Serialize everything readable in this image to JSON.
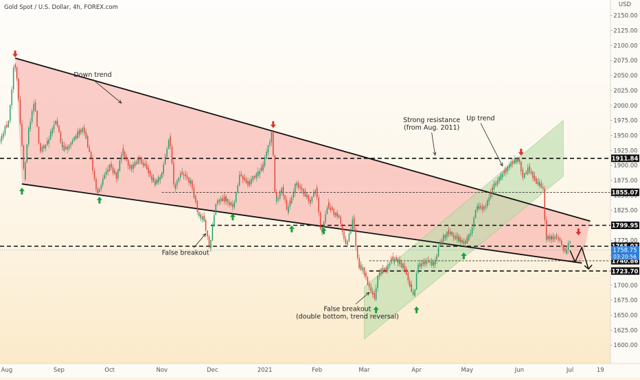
{
  "header": {
    "title": "Gold Spot / U.S. Dollar, 4h, FOREX.com"
  },
  "chart_data": {
    "type": "candlestick",
    "currency_label": "USD",
    "y_range": [
      1575,
      2160
    ],
    "y_ticks": [
      1600,
      1625,
      1650,
      1675,
      1700,
      1725,
      1750,
      1775,
      1800,
      1825,
      1850,
      1875,
      1900,
      1925,
      1950,
      1975,
      2000,
      2025,
      2050,
      2075,
      2100,
      2125,
      2150
    ],
    "y_tick_labels": [
      "1600.00",
      "1625.00",
      "1650.00",
      "1675.00",
      "1700.00",
      "1725.00",
      "1750.00",
      "1775.00",
      "1800.00",
      "1825.00",
      "1850.00",
      "1875.00",
      "1900.00",
      "1925.00",
      "1950.00",
      "1975.00",
      "2000.00",
      "2025.00",
      "2050.00",
      "2075.00",
      "2100.00",
      "2125.00",
      "2150.00"
    ],
    "x_range": [
      "2020-07-28",
      "2021-07-25"
    ],
    "x_ticks": [
      {
        "date": "2020-08-01",
        "label": "Aug"
      },
      {
        "date": "2020-09-01",
        "label": "Sep"
      },
      {
        "date": "2020-10-01",
        "label": "Oct"
      },
      {
        "date": "2020-11-01",
        "label": "Nov"
      },
      {
        "date": "2020-12-01",
        "label": "Dec"
      },
      {
        "date": "2021-01-01",
        "label": "2021"
      },
      {
        "date": "2021-02-01",
        "label": "Feb"
      },
      {
        "date": "2021-03-01",
        "label": "Mar"
      },
      {
        "date": "2021-04-01",
        "label": "Apr"
      },
      {
        "date": "2021-05-01",
        "label": "May"
      },
      {
        "date": "2021-06-01",
        "label": "Jun"
      },
      {
        "date": "2021-07-01",
        "label": "Jul"
      },
      {
        "date": "2021-07-19",
        "label": "19"
      }
    ],
    "price_path": [
      [
        "2020-07-28",
        1940
      ],
      [
        "2020-08-03",
        1975
      ],
      [
        "2020-08-06",
        2072
      ],
      [
        "2020-08-08",
        2040
      ],
      [
        "2020-08-12",
        1880
      ],
      [
        "2020-08-14",
        1950
      ],
      [
        "2020-08-18",
        2005
      ],
      [
        "2020-08-21",
        1925
      ],
      [
        "2020-08-25",
        1935
      ],
      [
        "2020-08-31",
        1975
      ],
      [
        "2020-09-04",
        1925
      ],
      [
        "2020-09-08",
        1935
      ],
      [
        "2020-09-16",
        1965
      ],
      [
        "2020-09-21",
        1905
      ],
      [
        "2020-09-24",
        1852
      ],
      [
        "2020-09-28",
        1880
      ],
      [
        "2020-10-02",
        1900
      ],
      [
        "2020-10-06",
        1880
      ],
      [
        "2020-10-09",
        1925
      ],
      [
        "2020-10-14",
        1895
      ],
      [
        "2020-10-19",
        1910
      ],
      [
        "2020-10-23",
        1900
      ],
      [
        "2020-10-28",
        1870
      ],
      [
        "2020-11-01",
        1880
      ],
      [
        "2020-11-06",
        1950
      ],
      [
        "2020-11-09",
        1860
      ],
      [
        "2020-11-13",
        1890
      ],
      [
        "2020-11-19",
        1870
      ],
      [
        "2020-11-24",
        1810
      ],
      [
        "2020-11-26",
        1815
      ],
      [
        "2020-11-30",
        1765
      ],
      [
        "2020-12-04",
        1840
      ],
      [
        "2020-12-09",
        1845
      ],
      [
        "2020-12-14",
        1830
      ],
      [
        "2020-12-18",
        1885
      ],
      [
        "2020-12-23",
        1870
      ],
      [
        "2020-12-31",
        1895
      ],
      [
        "2021-01-06",
        1955
      ],
      [
        "2021-01-08",
        1840
      ],
      [
        "2021-01-12",
        1860
      ],
      [
        "2021-01-15",
        1825
      ],
      [
        "2021-01-20",
        1870
      ],
      [
        "2021-01-25",
        1855
      ],
      [
        "2021-01-28",
        1840
      ],
      [
        "2021-02-01",
        1860
      ],
      [
        "2021-02-04",
        1790
      ],
      [
        "2021-02-08",
        1835
      ],
      [
        "2021-02-12",
        1820
      ],
      [
        "2021-02-15",
        1810
      ],
      [
        "2021-02-19",
        1765
      ],
      [
        "2021-02-23",
        1810
      ],
      [
        "2021-02-26",
        1735
      ],
      [
        "2021-03-01",
        1725
      ],
      [
        "2021-03-04",
        1700
      ],
      [
        "2021-03-08",
        1680
      ],
      [
        "2021-03-10",
        1720
      ],
      [
        "2021-03-15",
        1730
      ],
      [
        "2021-03-18",
        1745
      ],
      [
        "2021-03-22",
        1740
      ],
      [
        "2021-03-26",
        1725
      ],
      [
        "2021-03-31",
        1680
      ],
      [
        "2021-04-02",
        1730
      ],
      [
        "2021-04-07",
        1740
      ],
      [
        "2021-04-12",
        1735
      ],
      [
        "2021-04-16",
        1775
      ],
      [
        "2021-04-21",
        1790
      ],
      [
        "2021-04-27",
        1775
      ],
      [
        "2021-04-30",
        1770
      ],
      [
        "2021-05-04",
        1790
      ],
      [
        "2021-05-07",
        1830
      ],
      [
        "2021-05-12",
        1830
      ],
      [
        "2021-05-17",
        1865
      ],
      [
        "2021-05-21",
        1880
      ],
      [
        "2021-05-26",
        1898
      ],
      [
        "2021-05-28",
        1905
      ],
      [
        "2021-06-01",
        1910
      ],
      [
        "2021-06-04",
        1880
      ],
      [
        "2021-06-07",
        1895
      ],
      [
        "2021-06-11",
        1875
      ],
      [
        "2021-06-16",
        1860
      ],
      [
        "2021-06-17",
        1780
      ],
      [
        "2021-06-21",
        1780
      ],
      [
        "2021-06-24",
        1780
      ],
      [
        "2021-06-29",
        1755
      ],
      [
        "2021-07-01",
        1775
      ]
    ],
    "price_levels": [
      {
        "value": 1911.84,
        "label": "1911.84",
        "style": "thick-dashed"
      },
      {
        "value": 1855.07,
        "label": "1855.07",
        "style": "thin-dashed",
        "from": "2020-11-01"
      },
      {
        "value": 1799.95,
        "label": "1799.95",
        "style": "thick-dashed",
        "from": "2020-11-30"
      },
      {
        "value": 1765.03,
        "label": "1765.03",
        "style": "thick-dashed"
      },
      {
        "value": 1740.86,
        "label": "1740.86",
        "style": "thin-dashed",
        "from": "2021-03-04"
      },
      {
        "value": 1723.7,
        "label": "1723.70",
        "style": "thick-dashed",
        "from": "2021-03-04"
      }
    ],
    "current_price": {
      "value": 1758.75,
      "label": "1758.75",
      "countdown": "03:20:56"
    },
    "down_trend": {
      "upper": [
        [
          "2020-08-06",
          2079
        ],
        [
          "2021-07-13",
          1807
        ]
      ],
      "lower": [
        [
          "2020-08-10",
          1869
        ],
        [
          "2021-07-08",
          1737
        ]
      ]
    },
    "up_channel": {
      "corners": [
        [
          "2021-03-01",
          1610
        ],
        [
          "2021-03-01",
          1697
        ],
        [
          "2021-06-27",
          1975
        ],
        [
          "2021-06-27",
          1882
        ]
      ]
    },
    "annotations": [
      {
        "text": "Down trend",
        "at": [
          "2020-09-21",
          2048
        ],
        "arrow_to": [
          "2020-10-08",
          2004
        ]
      },
      {
        "text": "Strong resistance",
        "line2": "(from Aug. 2011)",
        "at": [
          "2021-04-10",
          1972
        ],
        "arrow_to": [
          "2021-04-12",
          1917
        ]
      },
      {
        "text": "Up trend",
        "at": [
          "2021-05-09",
          1975
        ],
        "arrow_to": [
          "2021-05-22",
          1899
        ]
      },
      {
        "text": "False breakout",
        "at": [
          "2020-11-15",
          1751
        ],
        "arrow_to": [
          "2020-11-27",
          1786
        ]
      },
      {
        "text": "False breakout",
        "line2": "(double bottom, trend reversal)",
        "at": [
          "2021-02-19",
          1657
        ],
        "arrow_to": [
          "2021-03-04",
          1688
        ]
      }
    ],
    "arrows_up": [
      [
        "2020-08-10",
        1857
      ],
      [
        "2020-09-25",
        1842
      ],
      [
        "2020-12-13",
        1814
      ],
      [
        "2021-01-17",
        1794
      ],
      [
        "2021-02-05",
        1791
      ],
      [
        "2021-03-08",
        1659
      ],
      [
        "2021-04-01",
        1659
      ],
      [
        "2021-04-29",
        1749
      ]
    ],
    "arrows_down": [
      [
        "2020-08-06",
        2086
      ],
      [
        "2021-01-06",
        1968
      ],
      [
        "2021-06-02",
        1922
      ],
      [
        "2021-07-06",
        1789
      ]
    ],
    "projection": [
      [
        "2021-07-01",
        1758
      ],
      [
        "2021-07-04",
        1739
      ],
      [
        "2021-07-08",
        1763
      ],
      [
        "2021-07-12",
        1727
      ]
    ]
  }
}
